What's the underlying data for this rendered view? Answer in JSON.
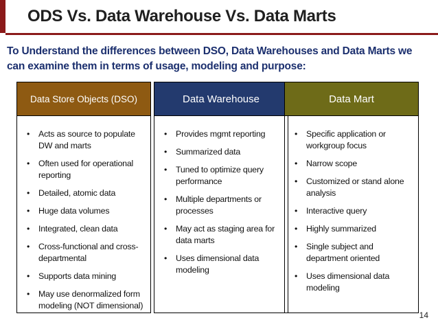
{
  "title": "ODS Vs. Data Warehouse Vs. Data Marts",
  "intro": "To Understand the differences between DSO, Data Warehouses and Data Marts we can examine them in terms of usage, modeling and purpose:",
  "columns": [
    {
      "header": "Data Store Objects (DSO)",
      "color": "#8e5a12",
      "items": [
        "Acts as source to populate DW and marts",
        "Often used for operational reporting",
        "Detailed, atomic data",
        "Huge data volumes",
        "Integrated, clean data",
        "Cross-functional and cross-departmental",
        "Supports data mining",
        "May use denormalized form modeling (NOT dimensional)"
      ]
    },
    {
      "header": "Data Warehouse",
      "color": "#233a6e",
      "items": [
        "Provides mgmt reporting",
        "Summarized data",
        "Tuned to optimize query performance",
        "Multiple departments or processes",
        "May act as staging area for data marts",
        "Uses dimensional data modeling"
      ]
    },
    {
      "header": "Data Mart",
      "color": "#6e6b18",
      "items": [
        "Specific application or workgroup focus",
        "Narrow scope",
        "Customized or stand alone analysis",
        "Interactive query",
        "Highly summarized",
        "Single subject and department oriented",
        "Uses dimensional data modeling"
      ]
    }
  ],
  "bullet": "•",
  "page_number": "14"
}
